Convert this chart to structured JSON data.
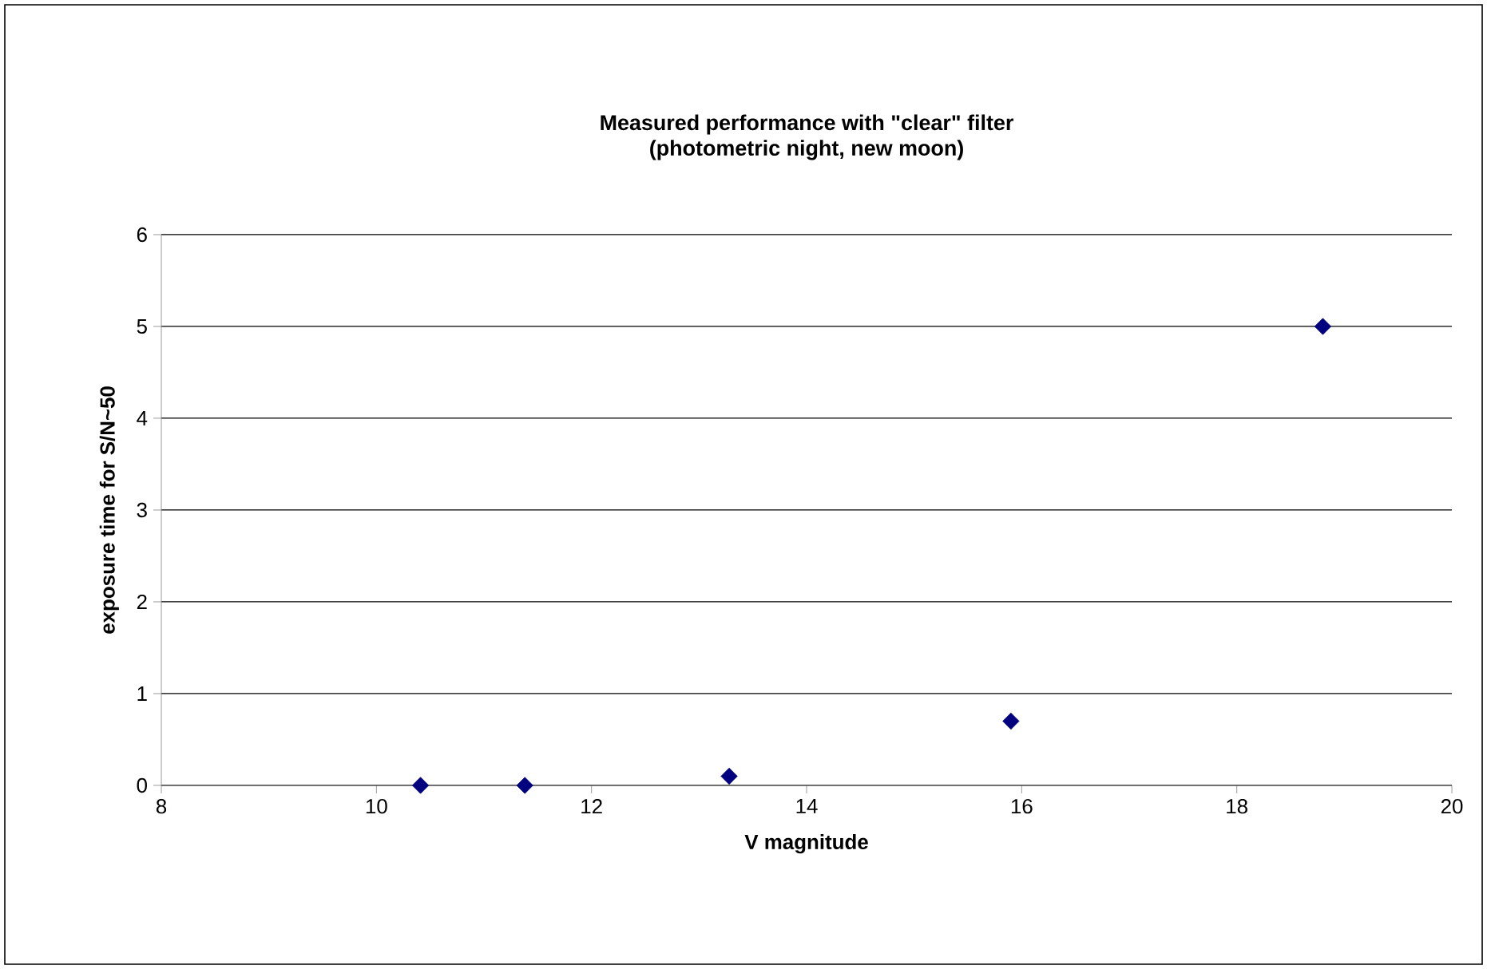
{
  "chart_data": {
    "type": "scatter",
    "title": "Measured performance with \"clear\" filter",
    "subtitle": "(photometric night, new moon)",
    "xlabel": "V magnitude",
    "ylabel": "exposure time for S/N~50",
    "x": [
      10.41,
      11.38,
      13.28,
      15.9,
      18.8
    ],
    "values": [
      0,
      0,
      0.1,
      0.7,
      5
    ],
    "color": "#000080",
    "marker": "diamond",
    "xlim": [
      8,
      20
    ],
    "xticks": [
      8,
      10,
      12,
      14,
      16,
      18,
      20
    ],
    "ylim": [
      0,
      6
    ],
    "yticks": [
      0,
      1,
      2,
      3,
      4,
      5,
      6
    ],
    "grid": "y"
  }
}
